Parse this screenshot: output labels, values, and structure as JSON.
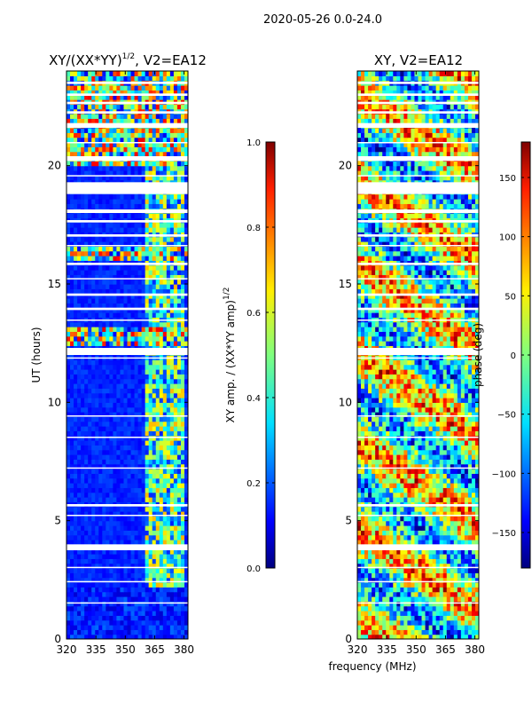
{
  "figure_title": "2020-05-26 0.0-24.0",
  "chart_data": [
    {
      "type": "heatmap",
      "title": "XY/(XX*YY)",
      "title_exponent": "1/2",
      "title_suffix": ", V2=EA12",
      "xlabel": "",
      "ylabel": "UT (hours)",
      "xlim": [
        320,
        382
      ],
      "ylim": [
        0,
        24
      ],
      "xticks": [
        "320",
        "335",
        "350",
        "365",
        "380"
      ],
      "xtick_values": [
        320,
        335,
        350,
        365,
        380
      ],
      "yticks": [
        "0",
        "5",
        "10",
        "15",
        "20"
      ],
      "ytick_values": [
        0,
        5,
        10,
        15,
        20
      ],
      "colormap": "jet",
      "colorbar": {
        "label": "XY amp. / (XX*YY amp)",
        "label_exponent": "1/2",
        "range": [
          0.0,
          1.0
        ],
        "ticks": [
          "0.0",
          "0.2",
          "0.4",
          "0.6",
          "0.8",
          "1.0"
        ],
        "tick_values": [
          0.0,
          0.2,
          0.4,
          0.6,
          0.8,
          1.0
        ]
      }
    },
    {
      "type": "heatmap",
      "title": "XY, V2=EA12",
      "xlabel": "frequency (MHz)",
      "ylabel": "",
      "xlim": [
        320,
        382
      ],
      "ylim": [
        0,
        24
      ],
      "xticks": [
        "320",
        "335",
        "350",
        "365",
        "380"
      ],
      "xtick_values": [
        320,
        335,
        350,
        365,
        380
      ],
      "yticks": [
        "0",
        "5",
        "10",
        "15",
        "20"
      ],
      "ytick_values": [
        0,
        5,
        10,
        15,
        20
      ],
      "colormap": "jet",
      "colorbar": {
        "label": "phase (deg)",
        "range": [
          -180,
          180
        ],
        "ticks": [
          "−150",
          "−100",
          "−50",
          "0",
          "50",
          "100",
          "150"
        ],
        "tick_values": [
          -150,
          -100,
          -50,
          0,
          50,
          100,
          150
        ]
      }
    }
  ],
  "flagged_gaps_hours": [
    [
      23.45,
      23.55
    ],
    [
      22.95,
      23.05
    ],
    [
      22.6,
      22.7
    ],
    [
      22.2,
      22.3
    ],
    [
      21.6,
      21.8
    ],
    [
      20.95,
      21.0
    ],
    [
      20.2,
      20.4
    ],
    [
      19.55,
      19.6
    ],
    [
      18.8,
      19.3
    ],
    [
      18.0,
      18.15
    ],
    [
      17.6,
      17.7
    ],
    [
      17.0,
      17.1
    ],
    [
      16.6,
      16.65
    ],
    [
      15.8,
      15.9
    ],
    [
      15.2,
      15.25
    ],
    [
      14.5,
      14.6
    ],
    [
      13.9,
      14.0
    ],
    [
      13.45,
      13.5
    ],
    [
      12.0,
      12.3
    ],
    [
      11.85,
      11.9
    ],
    [
      9.4,
      9.45
    ],
    [
      8.5,
      8.55
    ],
    [
      7.2,
      7.25
    ],
    [
      5.6,
      5.7
    ],
    [
      5.2,
      5.25
    ],
    [
      3.75,
      4.0
    ],
    [
      3.0,
      3.05
    ],
    [
      2.4,
      2.45
    ],
    [
      1.5,
      1.55
    ]
  ]
}
